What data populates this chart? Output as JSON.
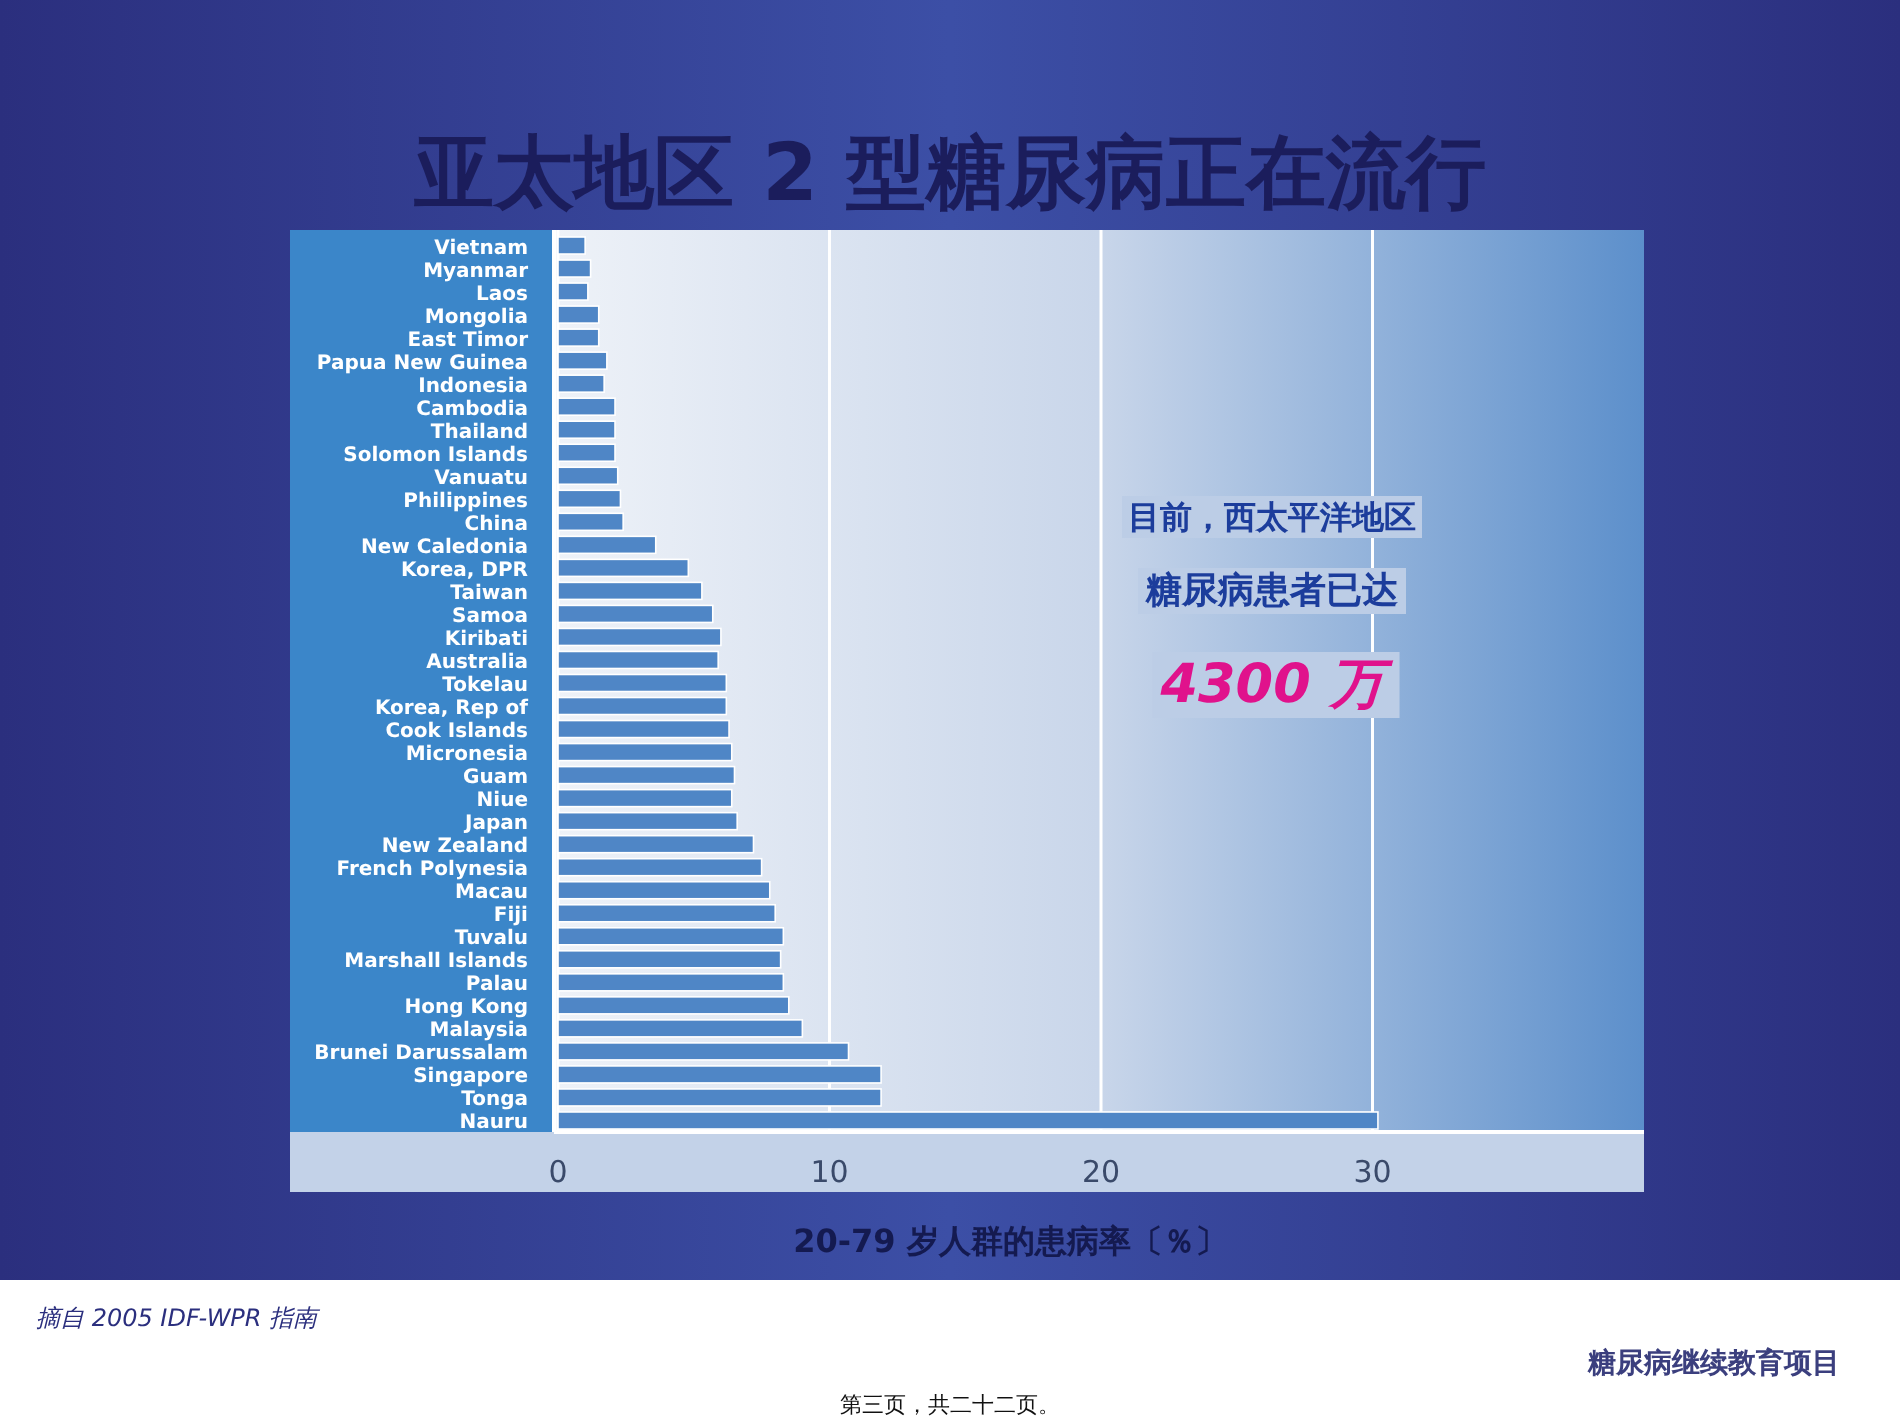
{
  "chart_data": {
    "type": "bar",
    "orientation": "horizontal",
    "title": "亚太地区 2 型糖尿病正在流行",
    "xlabel": "20-79 岁人群的患病率〔％〕",
    "categories": [
      "Vietnam",
      "Myanmar",
      "Laos",
      "Mongolia",
      "East Timor",
      "Papua New Guinea",
      "Indonesia",
      "Cambodia",
      "Thailand",
      "Solomon Islands",
      "Vanuatu",
      "Philippines",
      "China",
      "New Caledonia",
      "Korea, DPR",
      "Taiwan",
      "Samoa",
      "Kiribati",
      "Australia",
      "Tokelau",
      "Korea, Rep of",
      "Cook Islands",
      "Micronesia",
      "Guam",
      "Niue",
      "Japan",
      "New Zealand",
      "French Polynesia",
      "Macau",
      "Fiji",
      "Tuvalu",
      "Marshall Islands",
      "Palau",
      "Hong Kong",
      "Malaysia",
      "Brunei Darussalam",
      "Singapore",
      "Tonga",
      "Nauru"
    ],
    "values": [
      1.0,
      1.2,
      1.1,
      1.5,
      1.5,
      1.8,
      1.7,
      2.1,
      2.1,
      2.1,
      2.2,
      2.3,
      2.4,
      3.6,
      4.8,
      5.3,
      5.7,
      6.0,
      5.9,
      6.2,
      6.2,
      6.3,
      6.4,
      6.5,
      6.4,
      6.6,
      7.2,
      7.5,
      7.8,
      8.0,
      8.3,
      8.2,
      8.3,
      8.5,
      9.0,
      10.7,
      11.9,
      11.9,
      30.2
    ],
    "color": "#4f86c6",
    "xlim": [
      0,
      40
    ],
    "xticks": [
      0,
      10,
      20,
      30
    ],
    "grid": "x",
    "annotations": [
      "目前，西太平洋地区",
      "糖尿病患者已达",
      "4300 万",
      "摘自 2005 IDF-WPR 指南",
      "糖尿病继续教育项目",
      "第三页，共二十二页。"
    ]
  }
}
